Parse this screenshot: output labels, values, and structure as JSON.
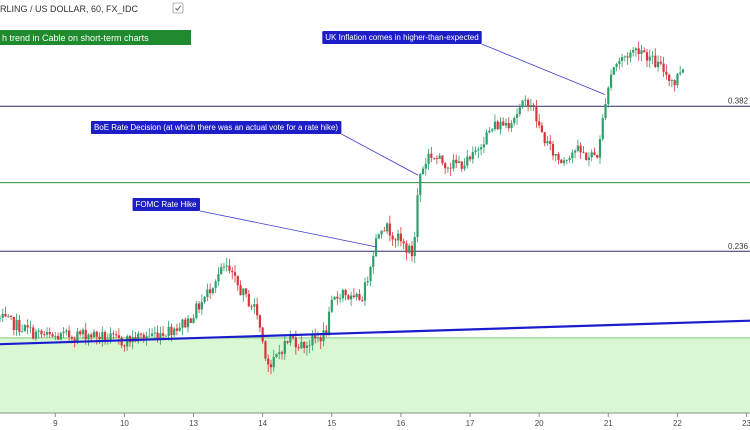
{
  "header": {
    "symbol_title": "RLING / US DOLLAR, 60, FX_IDC",
    "trend_label": "h trend in Cable on short-term charts"
  },
  "colors": {
    "up_candle": "#2e9e6a",
    "down_candle": "#d9343b",
    "annotation_bg": "#1e1ec8",
    "trend_label_bg": "#1f8a2e",
    "trendline": "#1c1ccf",
    "level_navy": "#2b2f6a",
    "level_green": "#2f8d3a",
    "support_fill": "#d9f7d2",
    "support_edge": "#7dc97a",
    "connector": "#3c3ccc"
  },
  "annotations": [
    {
      "text": "UK Inflation comes in higher-than-expected"
    },
    {
      "text": "BoE Rate Decision (at which there was an actual vote for a rate hike)"
    },
    {
      "text": "FOMC Rate Hike"
    }
  ],
  "chart_data": {
    "type": "candlestick",
    "title": "RLING / US DOLLAR, 60, FX_IDC",
    "xlabel": "",
    "ylabel": "",
    "grid": false,
    "x_ticks": [
      "9",
      "10",
      "13",
      "14",
      "15",
      "16",
      "17",
      "20",
      "21",
      "22",
      "23"
    ],
    "x_tick_positions": [
      0.5,
      1.5,
      2.5,
      3.5,
      4.5,
      5.5,
      6.5,
      7.5,
      8.5,
      9.5,
      10.5
    ],
    "xlim": [
      -0.3,
      10.55
    ],
    "ylim": [
      0,
      100
    ],
    "levels": [
      {
        "label": "0.382",
        "value": 78.0,
        "style": "navy"
      },
      {
        "label": "",
        "value": 58.5,
        "style": "green"
      },
      {
        "label": "0.236",
        "value": 41.0,
        "style": "navy"
      }
    ],
    "trendline": {
      "start": [
        -0.3,
        17.3
      ],
      "end": [
        10.55,
        23.3
      ]
    },
    "support_zone": {
      "top": 18.9
    },
    "annotation_targets": [
      {
        "x": 8.45,
        "y": 81.0
      },
      {
        "x": 5.75,
        "y": 60.4
      },
      {
        "x": 5.15,
        "y": 42.1
      }
    ],
    "series": [
      {
        "name": "",
        "ohlc": []
      }
    ],
    "path_keypoints": [
      [
        -0.3,
        24
      ],
      [
        0.0,
        22
      ],
      [
        0.25,
        20
      ],
      [
        0.5,
        19
      ],
      [
        0.75,
        19.5
      ],
      [
        1.0,
        20
      ],
      [
        1.25,
        19
      ],
      [
        1.5,
        18
      ],
      [
        1.75,
        19
      ],
      [
        2.0,
        20
      ],
      [
        2.2,
        21
      ],
      [
        2.45,
        23
      ],
      [
        2.7,
        29
      ],
      [
        2.85,
        34
      ],
      [
        3.0,
        37
      ],
      [
        3.15,
        33
      ],
      [
        3.3,
        29
      ],
      [
        3.45,
        26
      ],
      [
        3.55,
        17
      ],
      [
        3.65,
        11
      ],
      [
        3.8,
        16
      ],
      [
        3.95,
        19
      ],
      [
        4.1,
        17
      ],
      [
        4.25,
        18
      ],
      [
        4.45,
        20
      ],
      [
        4.55,
        28
      ],
      [
        4.7,
        31
      ],
      [
        4.85,
        28
      ],
      [
        5.0,
        30
      ],
      [
        5.15,
        42
      ],
      [
        5.25,
        48
      ],
      [
        5.4,
        46
      ],
      [
        5.55,
        43
      ],
      [
        5.72,
        40
      ],
      [
        5.8,
        60
      ],
      [
        5.95,
        66
      ],
      [
        6.1,
        64
      ],
      [
        6.3,
        63
      ],
      [
        6.55,
        64
      ],
      [
        6.7,
        69
      ],
      [
        6.9,
        73
      ],
      [
        7.1,
        74
      ],
      [
        7.25,
        77
      ],
      [
        7.4,
        80
      ],
      [
        7.55,
        72
      ],
      [
        7.7,
        67
      ],
      [
        7.85,
        64
      ],
      [
        8.05,
        67
      ],
      [
        8.25,
        65
      ],
      [
        8.4,
        66
      ],
      [
        8.5,
        80
      ],
      [
        8.6,
        88
      ],
      [
        8.8,
        91
      ],
      [
        9.0,
        93
      ],
      [
        9.15,
        90
      ],
      [
        9.35,
        87
      ],
      [
        9.5,
        84
      ],
      [
        9.6,
        88
      ]
    ]
  }
}
